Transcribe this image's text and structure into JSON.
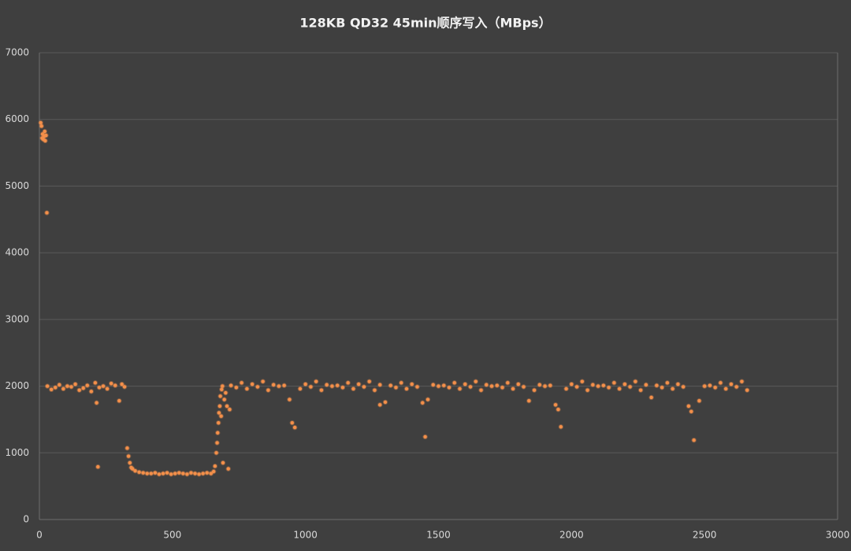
{
  "chart_data": {
    "type": "scatter",
    "title": "128KB QD32 45min顺序写入（MBps）",
    "color": "#f4904a",
    "grid": true,
    "xlim": [
      0,
      3000
    ],
    "xticks": [
      0,
      500,
      1000,
      1500,
      2000,
      2500,
      3000
    ],
    "ylim": [
      0,
      7000
    ],
    "yticks": [
      0,
      1000,
      2000,
      3000,
      4000,
      5000,
      6000,
      7000
    ],
    "x": [
      5,
      8,
      10,
      12,
      15,
      18,
      20,
      22,
      25,
      28,
      30,
      45,
      60,
      75,
      90,
      105,
      120,
      135,
      150,
      165,
      180,
      195,
      210,
      215,
      220,
      225,
      240,
      255,
      270,
      285,
      300,
      310,
      320,
      330,
      335,
      340,
      345,
      350,
      360,
      375,
      390,
      405,
      420,
      435,
      450,
      465,
      480,
      495,
      510,
      525,
      540,
      555,
      570,
      585,
      600,
      615,
      630,
      645,
      655,
      660,
      665,
      668,
      670,
      673,
      675,
      678,
      680,
      683,
      685,
      688,
      690,
      695,
      700,
      705,
      710,
      715,
      720,
      740,
      760,
      780,
      800,
      820,
      840,
      860,
      880,
      900,
      920,
      940,
      960,
      980,
      1000,
      1020,
      1040,
      1060,
      1080,
      1100,
      1120,
      1140,
      1160,
      1180,
      1200,
      1220,
      1240,
      1260,
      1280,
      1300,
      1320,
      1340,
      1360,
      1380,
      1400,
      1420,
      1440,
      1460,
      1480,
      1500,
      1520,
      1540,
      1560,
      1580,
      1600,
      1620,
      1640,
      1660,
      1680,
      1700,
      1720,
      1740,
      1760,
      1780,
      1800,
      1820,
      1840,
      1860,
      1880,
      1900,
      1920,
      1940,
      1960,
      1980,
      2000,
      2020,
      2040,
      2060,
      2080,
      2100,
      2120,
      2140,
      2160,
      2180,
      2200,
      2220,
      2240,
      2260,
      2280,
      2300,
      2320,
      2340,
      2360,
      2380,
      2400,
      2420,
      2440,
      2460,
      2480,
      2500,
      2520,
      2540,
      2560,
      2580,
      2600,
      2620,
      2640,
      2660,
      1450,
      950,
      1950,
      2450,
      1280
    ],
    "values": [
      5950,
      5900,
      5720,
      5780,
      5700,
      5750,
      5820,
      5680,
      5760,
      4600,
      2000,
      1950,
      1980,
      2020,
      1960,
      2000,
      1990,
      2030,
      1940,
      1970,
      2010,
      1920,
      2050,
      1750,
      790,
      1980,
      2000,
      1960,
      2040,
      2010,
      1780,
      2030,
      1990,
      1070,
      950,
      850,
      780,
      760,
      730,
      710,
      700,
      690,
      690,
      700,
      680,
      690,
      700,
      680,
      690,
      700,
      690,
      680,
      700,
      690,
      680,
      690,
      700,
      690,
      720,
      800,
      1000,
      1150,
      1300,
      1450,
      1600,
      1700,
      1850,
      1550,
      1950,
      2000,
      850,
      1800,
      1900,
      1700,
      760,
      1650,
      2010,
      1980,
      2050,
      1960,
      2030,
      1990,
      2070,
      1940,
      2020,
      2000,
      2010,
      1800,
      1380,
      1960,
      2030,
      1990,
      2070,
      1940,
      2020,
      2000,
      2010,
      1980,
      2050,
      1960,
      2030,
      1990,
      2070,
      1940,
      2020,
      1760,
      2010,
      1980,
      2050,
      1960,
      2030,
      1990,
      1750,
      1800,
      2020,
      2000,
      2010,
      1980,
      2050,
      1960,
      2030,
      1990,
      2070,
      1940,
      2020,
      2000,
      2010,
      1980,
      2050,
      1960,
      2030,
      1990,
      1780,
      1940,
      2020,
      2000,
      2010,
      1720,
      1390,
      1960,
      2030,
      1990,
      2070,
      1940,
      2020,
      2000,
      2010,
      1980,
      2050,
      1960,
      2030,
      1990,
      2070,
      1940,
      2020,
      1830,
      2010,
      1980,
      2050,
      1960,
      2030,
      1990,
      1700,
      1190,
      1780,
      2000,
      2010,
      1980,
      2050,
      1960,
      2030,
      1990,
      2070,
      1940,
      1240,
      1450,
      1650,
      1620,
      1720
    ]
  }
}
